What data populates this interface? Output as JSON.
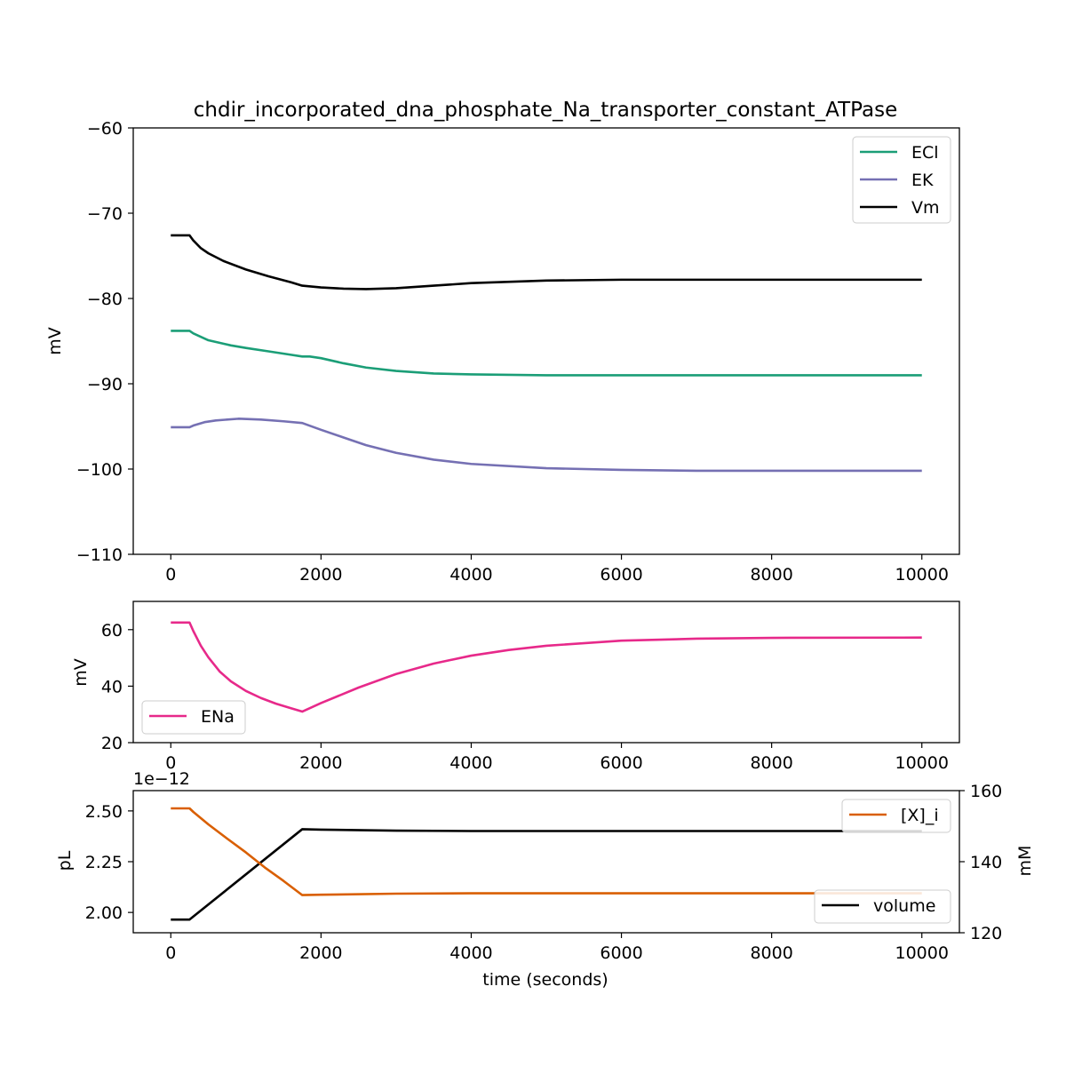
{
  "chart_data": [
    {
      "type": "line",
      "title": "chdir_incorporated_dna_phosphate_Na_transporter_constant_ATPase",
      "xlabel": "",
      "ylabel": "mV",
      "xlim": [
        -500,
        10500
      ],
      "ylim": [
        -110,
        -60
      ],
      "xticks": [
        "0",
        "2000",
        "4000",
        "6000",
        "8000",
        "10000"
      ],
      "xtick_values": [
        0,
        2000,
        4000,
        6000,
        8000,
        10000
      ],
      "yticks": [
        "−60",
        "−70",
        "−80",
        "−90",
        "−100",
        "−110"
      ],
      "ytick_values": [
        -60,
        -70,
        -80,
        -90,
        -100,
        -110
      ],
      "legend_position": "top-right",
      "series": [
        {
          "name": "ECl",
          "color": "#1b9e77",
          "x": [
            0,
            250,
            300,
            500,
            800,
            1000,
            1300,
            1600,
            1750,
            1850,
            2000,
            2300,
            2600,
            3000,
            3500,
            4000,
            5000,
            6000,
            8000,
            10000
          ],
          "y": [
            -83.8,
            -83.8,
            -84.1,
            -84.9,
            -85.5,
            -85.8,
            -86.2,
            -86.6,
            -86.8,
            -86.8,
            -87.0,
            -87.6,
            -88.1,
            -88.5,
            -88.8,
            -88.9,
            -89.0,
            -89.0,
            -89.0,
            -89.0
          ]
        },
        {
          "name": "EK",
          "color": "#7570b3",
          "x": [
            0,
            250,
            300,
            450,
            600,
            900,
            1200,
            1500,
            1750,
            2000,
            2300,
            2600,
            3000,
            3500,
            4000,
            5000,
            6000,
            7000,
            8000,
            10000
          ],
          "y": [
            -95.1,
            -95.1,
            -94.9,
            -94.5,
            -94.3,
            -94.1,
            -94.2,
            -94.4,
            -94.6,
            -95.4,
            -96.3,
            -97.2,
            -98.1,
            -98.9,
            -99.4,
            -99.9,
            -100.1,
            -100.2,
            -100.2,
            -100.2
          ]
        },
        {
          "name": "Vm",
          "color": "#000000",
          "x": [
            0,
            250,
            300,
            400,
            500,
            700,
            1000,
            1300,
            1600,
            1750,
            2000,
            2300,
            2600,
            3000,
            3500,
            4000,
            5000,
            6000,
            8000,
            10000
          ],
          "y": [
            -72.6,
            -72.6,
            -73.2,
            -74.1,
            -74.7,
            -75.6,
            -76.6,
            -77.4,
            -78.1,
            -78.5,
            -78.7,
            -78.85,
            -78.9,
            -78.8,
            -78.5,
            -78.2,
            -77.9,
            -77.8,
            -77.8,
            -77.8
          ]
        }
      ]
    },
    {
      "type": "line",
      "title": "",
      "xlabel": "",
      "ylabel": "mV",
      "xlim": [
        -500,
        10500
      ],
      "ylim": [
        20,
        70
      ],
      "xticks": [
        "0",
        "2000",
        "4000",
        "6000",
        "8000",
        "10000"
      ],
      "xtick_values": [
        0,
        2000,
        4000,
        6000,
        8000,
        10000
      ],
      "yticks": [
        "20",
        "40",
        "60"
      ],
      "ytick_values": [
        20,
        40,
        60
      ],
      "legend_position": "lower-left",
      "series": [
        {
          "name": "ENa",
          "color": "#e7298a",
          "x": [
            0,
            250,
            300,
            400,
            500,
            650,
            800,
            1000,
            1200,
            1400,
            1600,
            1750,
            2000,
            2500,
            3000,
            3500,
            4000,
            4500,
            5000,
            6000,
            7000,
            8000,
            10000
          ],
          "y": [
            62.5,
            62.5,
            59.5,
            54.3,
            50.2,
            45.2,
            41.7,
            38.3,
            35.8,
            33.8,
            32.2,
            31.0,
            34.0,
            39.5,
            44.3,
            48.0,
            50.8,
            52.8,
            54.3,
            56.1,
            56.8,
            57.1,
            57.2
          ]
        }
      ]
    },
    {
      "type": "line",
      "title": "",
      "xlabel": "time (seconds)",
      "ylabel": "pL",
      "y2label": "mM",
      "y_offset_text": "1e−12",
      "xlim": [
        -500,
        10500
      ],
      "ylim": [
        1.9,
        2.6
      ],
      "y2lim": [
        120,
        160
      ],
      "xticks": [
        "0",
        "2000",
        "4000",
        "6000",
        "8000",
        "10000"
      ],
      "xtick_values": [
        0,
        2000,
        4000,
        6000,
        8000,
        10000
      ],
      "yticks": [
        "2.00",
        "2.25",
        "2.50"
      ],
      "ytick_values": [
        2.0,
        2.25,
        2.5
      ],
      "y2ticks": [
        "120",
        "140",
        "160"
      ],
      "y2tick_values": [
        120,
        140,
        160
      ],
      "series": [
        {
          "name": "volume",
          "axis": "left",
          "color": "#000000",
          "legend_position": "lower-right",
          "x": [
            0,
            250,
            1750,
            2000,
            3000,
            4000,
            6000,
            10000
          ],
          "y": [
            1.965,
            1.965,
            2.41,
            2.408,
            2.403,
            2.401,
            2.401,
            2.401
          ]
        },
        {
          "name": "[X]_i",
          "axis": "right",
          "color": "#d95f02",
          "legend_position": "top-right",
          "x": [
            0,
            250,
            300,
            500,
            750,
            1000,
            1250,
            1500,
            1750,
            2000,
            3000,
            4000,
            6000,
            10000
          ],
          "y": [
            155.0,
            155.0,
            154.0,
            150.5,
            146.5,
            142.6,
            138.4,
            134.6,
            130.6,
            130.7,
            131.0,
            131.1,
            131.1,
            131.1
          ]
        }
      ]
    }
  ]
}
